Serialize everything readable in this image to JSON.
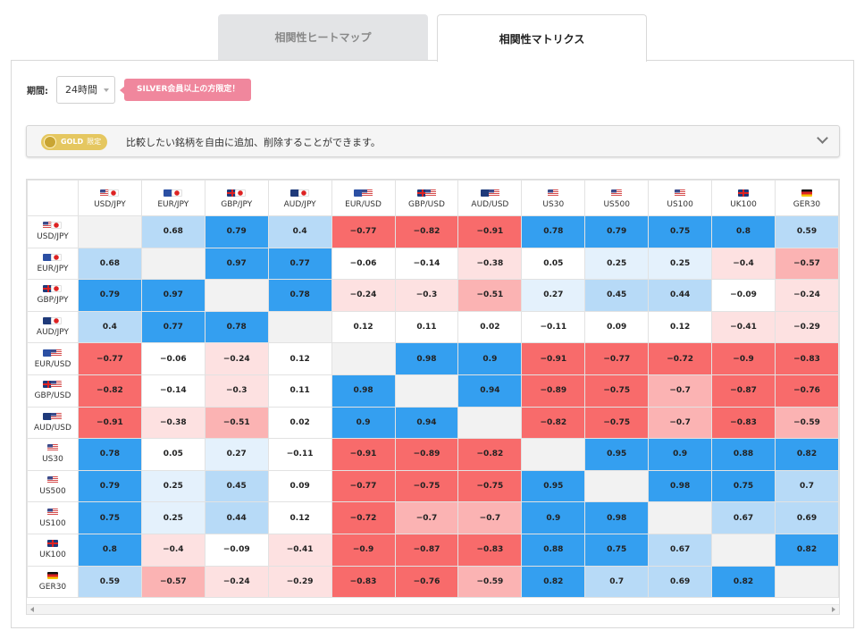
{
  "tabs": [
    {
      "label": "相関性ヒートマップ",
      "active": false
    },
    {
      "label": "相関性マトリクス",
      "active": true
    }
  ],
  "period": {
    "label": "期間:",
    "value": "24時間"
  },
  "silver_notice": "SILVER会員以上の方限定！",
  "gold_bar": {
    "badge": "GOLD",
    "badge_suffix": "限定",
    "text": "比較したい銘柄を自由に追加、削除することができます。"
  },
  "colors": {
    "strong_pos": "#349ff0",
    "mid_pos": "#b7daf7",
    "weak_pos": "#e4f1fc",
    "neutral": "#ffffff",
    "weak_neg": "#fde1e1",
    "mid_neg": "#fbb3b3",
    "strong_neg": "#f86b6b",
    "diagonal": "#f2f2f2",
    "silver": "#f0879d",
    "gold": "#e5c760"
  },
  "symbols": [
    {
      "label": "USD/JPY",
      "flags": [
        "us",
        "jp"
      ]
    },
    {
      "label": "EUR/JPY",
      "flags": [
        "eu",
        "jp"
      ]
    },
    {
      "label": "GBP/JPY",
      "flags": [
        "gb",
        "jp"
      ]
    },
    {
      "label": "AUD/JPY",
      "flags": [
        "au",
        "jp"
      ]
    },
    {
      "label": "EUR/USD",
      "flags": [
        "eu",
        "us"
      ]
    },
    {
      "label": "GBP/USD",
      "flags": [
        "gb",
        "us"
      ]
    },
    {
      "label": "AUD/USD",
      "flags": [
        "au",
        "us"
      ]
    },
    {
      "label": "US30",
      "flags": [
        "us"
      ]
    },
    {
      "label": "US500",
      "flags": [
        "us"
      ]
    },
    {
      "label": "US100",
      "flags": [
        "us"
      ]
    },
    {
      "label": "UK100",
      "flags": [
        "gb"
      ]
    },
    {
      "label": "GER30",
      "flags": [
        "de"
      ]
    }
  ],
  "matrix": [
    [
      null,
      0.68,
      0.79,
      0.4,
      -0.77,
      -0.82,
      -0.91,
      0.78,
      0.79,
      0.75,
      0.8,
      0.59
    ],
    [
      0.68,
      null,
      0.97,
      0.77,
      -0.06,
      -0.14,
      -0.38,
      0.05,
      0.25,
      0.25,
      -0.4,
      -0.57
    ],
    [
      0.79,
      0.97,
      null,
      0.78,
      -0.24,
      -0.3,
      -0.51,
      0.27,
      0.45,
      0.44,
      -0.09,
      -0.24
    ],
    [
      0.4,
      0.77,
      0.78,
      null,
      0.12,
      0.11,
      0.02,
      -0.11,
      0.09,
      0.12,
      -0.41,
      -0.29
    ],
    [
      -0.77,
      -0.06,
      -0.24,
      0.12,
      null,
      0.98,
      0.9,
      -0.91,
      -0.77,
      -0.72,
      -0.9,
      -0.83
    ],
    [
      -0.82,
      -0.14,
      -0.3,
      0.11,
      0.98,
      null,
      0.94,
      -0.89,
      -0.75,
      -0.7,
      -0.87,
      -0.76
    ],
    [
      -0.91,
      -0.38,
      -0.51,
      0.02,
      0.9,
      0.94,
      null,
      -0.82,
      -0.75,
      -0.7,
      -0.83,
      -0.59
    ],
    [
      0.78,
      0.05,
      0.27,
      -0.11,
      -0.91,
      -0.89,
      -0.82,
      null,
      0.95,
      0.9,
      0.88,
      0.82
    ],
    [
      0.79,
      0.25,
      0.45,
      0.09,
      -0.77,
      -0.75,
      -0.75,
      0.95,
      null,
      0.98,
      0.75,
      0.7
    ],
    [
      0.75,
      0.25,
      0.44,
      0.12,
      -0.72,
      -0.7,
      -0.7,
      0.9,
      0.98,
      null,
      0.67,
      0.69
    ],
    [
      0.8,
      -0.4,
      -0.09,
      -0.41,
      -0.9,
      -0.87,
      -0.83,
      0.88,
      0.75,
      0.67,
      null,
      0.82
    ],
    [
      0.59,
      -0.57,
      -0.24,
      -0.29,
      -0.83,
      -0.76,
      -0.59,
      0.82,
      0.7,
      0.69,
      0.82,
      null
    ]
  ]
}
